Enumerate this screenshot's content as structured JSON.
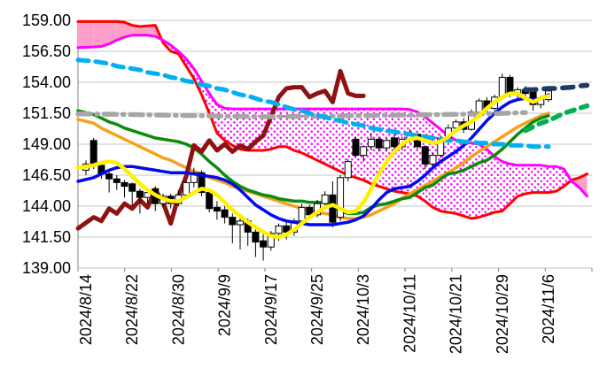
{
  "chart_data": {
    "type": "candlestick",
    "title": "",
    "grid": true,
    "legend": false,
    "y_axis": {
      "min": 139.0,
      "max": 159.0,
      "step": 2.5,
      "tick_labels": [
        "159.00",
        "156.50",
        "154.00",
        "151.50",
        "149.00",
        "146.50",
        "144.00",
        "141.50",
        "139.00"
      ]
    },
    "x_axis": {
      "tick_labels": [
        "2024/8/14",
        "2024/8/22",
        "2024/8/30",
        "2024/9/9",
        "2024/9/17",
        "2024/9/25",
        "2024/10/3",
        "2024/10/11",
        "2024/10/21",
        "2024/10/29",
        "2024/11/6"
      ],
      "tick_indices": [
        0,
        6,
        12,
        18,
        24,
        30,
        36,
        42,
        48,
        54,
        60
      ],
      "total_slots": 66
    },
    "colors": {
      "up": "#FFFFFF",
      "down": "#000000",
      "outline": "#000000",
      "grid": "#C6C6C6",
      "axis": "#808080",
      "cloud_solid": "#FF9EC8",
      "cloud_dot": "#FF00FF",
      "text": "#000000"
    },
    "candles": [
      [
        146.9,
        147.7,
        146.5,
        147.4
      ],
      [
        149.3,
        149.5,
        147.0,
        147.3
      ],
      [
        147.3,
        147.5,
        146.2,
        146.6
      ],
      [
        146.6,
        146.8,
        145.1,
        146.2
      ],
      [
        146.2,
        146.5,
        145.3,
        145.9
      ],
      [
        145.9,
        146.1,
        144.7,
        145.6
      ],
      [
        145.8,
        145.9,
        144.0,
        145.2
      ],
      [
        145.2,
        145.4,
        143.4,
        144.7
      ],
      [
        144.7,
        145.3,
        144.2,
        145.1
      ],
      [
        145.4,
        145.6,
        143.6,
        144.2
      ],
      [
        144.2,
        145.0,
        143.9,
        144.8
      ],
      [
        144.8,
        145.0,
        143.8,
        144.2
      ],
      [
        144.2,
        145.3,
        144.0,
        144.9
      ],
      [
        144.9,
        146.1,
        144.6,
        145.9
      ],
      [
        145.9,
        147.1,
        145.5,
        146.7
      ],
      [
        146.7,
        146.9,
        144.8,
        145.1
      ],
      [
        145.1,
        145.2,
        143.5,
        143.8
      ],
      [
        143.9,
        144.4,
        142.9,
        143.6
      ],
      [
        143.7,
        144.0,
        142.6,
        143.1
      ],
      [
        143.1,
        143.4,
        141.0,
        142.5
      ],
      [
        142.5,
        143.1,
        140.5,
        142.8
      ],
      [
        142.8,
        143.0,
        140.8,
        141.9
      ],
      [
        141.9,
        142.2,
        139.9,
        141.1
      ],
      [
        141.2,
        141.8,
        139.6,
        140.7
      ],
      [
        140.7,
        142.0,
        140.4,
        141.8
      ],
      [
        141.8,
        142.6,
        141.2,
        142.4
      ],
      [
        142.4,
        142.7,
        141.3,
        141.9
      ],
      [
        141.9,
        143.0,
        141.6,
        142.8
      ],
      [
        142.8,
        144.2,
        142.5,
        143.9
      ],
      [
        143.9,
        144.1,
        143.0,
        143.3
      ],
      [
        143.3,
        144.5,
        143.1,
        144.2
      ],
      [
        144.2,
        145.2,
        143.9,
        144.9
      ],
      [
        144.9,
        146.0,
        142.3,
        142.7
      ],
      [
        143.1,
        146.5,
        142.8,
        146.3
      ],
      [
        146.3,
        147.8,
        146.0,
        147.6
      ],
      [
        149.4,
        149.6,
        147.9,
        148.1
      ],
      [
        148.1,
        148.9,
        147.6,
        148.8
      ],
      [
        148.8,
        149.9,
        148.5,
        149.4
      ],
      [
        149.4,
        149.6,
        148.4,
        148.7
      ],
      [
        148.7,
        149.5,
        148.4,
        149.3
      ],
      [
        149.5,
        150.0,
        148.6,
        148.8
      ],
      [
        148.8,
        149.6,
        148.5,
        149.4
      ],
      [
        149.4,
        150.2,
        149.1,
        149.8
      ],
      [
        149.8,
        149.9,
        148.6,
        148.8
      ],
      [
        148.8,
        148.9,
        147.0,
        147.4
      ],
      [
        147.4,
        148.3,
        147.2,
        148.1
      ],
      [
        148.1,
        149.7,
        147.9,
        149.5
      ],
      [
        149.5,
        150.6,
        149.3,
        150.3
      ],
      [
        150.3,
        151.0,
        150.0,
        150.8
      ],
      [
        150.8,
        151.1,
        149.9,
        150.2
      ],
      [
        150.2,
        151.8,
        150.1,
        151.6
      ],
      [
        151.6,
        152.7,
        151.4,
        152.5
      ],
      [
        152.5,
        152.8,
        151.6,
        151.9
      ],
      [
        151.9,
        153.0,
        151.7,
        152.8
      ],
      [
        152.8,
        154.7,
        152.6,
        154.4
      ],
      [
        154.4,
        154.6,
        152.8,
        153.0
      ],
      [
        153.0,
        153.6,
        152.7,
        153.4
      ],
      [
        153.4,
        153.7,
        152.9,
        153.1
      ],
      [
        153.3,
        153.5,
        151.7,
        152.2
      ],
      [
        152.2,
        152.9,
        151.9,
        152.6
      ],
      [
        152.6,
        153.5,
        152.4,
        153.3
      ]
    ],
    "series": {
      "yellow_fast_ma": {
        "color": "#FFF000",
        "width": 4.5,
        "start": 0,
        "values": [
          147.1,
          147.3,
          147.5,
          147.6,
          147.5,
          147.0,
          146.4,
          145.8,
          145.3,
          144.9,
          144.6,
          144.4,
          144.4,
          144.7,
          145.1,
          145.4,
          145.3,
          144.9,
          144.3,
          143.7,
          143.2,
          142.7,
          142.3,
          141.9,
          141.6,
          141.5,
          141.7,
          142.1,
          142.6,
          143.1,
          143.5,
          143.9,
          144.1,
          143.8,
          143.5,
          143.6,
          144.3,
          145.4,
          146.6,
          147.6,
          148.4,
          149.0,
          149.4,
          149.5,
          149.3,
          149.1,
          149.2,
          149.6,
          150.1,
          150.5,
          150.8,
          151.3,
          151.9,
          152.4,
          152.8,
          153.1,
          153.1,
          152.7,
          152.4,
          152.7,
          152.9
        ]
      },
      "blue_ma": {
        "color": "#0008F0",
        "width": 3.5,
        "start": 0,
        "values": [
          146.0,
          146.3,
          146.6,
          146.9,
          147.1,
          147.2,
          147.2,
          147.1,
          147.0,
          146.9,
          146.8,
          146.7,
          146.7,
          146.7,
          146.6,
          146.5,
          146.4,
          146.3,
          146.1,
          145.8,
          145.3,
          144.7,
          144.1,
          143.7,
          143.3,
          143.0,
          142.8,
          142.7,
          142.6,
          142.5,
          142.5,
          142.5,
          142.5,
          142.6,
          142.7,
          142.9,
          143.2,
          143.8,
          144.5,
          145.1,
          145.4,
          145.5,
          145.6,
          146.0,
          146.5,
          147.1,
          147.6,
          148.0,
          148.4,
          148.9,
          149.5,
          150.2,
          150.9,
          151.5,
          152.0,
          152.4,
          152.6,
          152.7,
          152.6,
          152.7,
          153.0
        ]
      },
      "green_slow_ma": {
        "color": "#0E8A0E",
        "width": 3.5,
        "start": 0,
        "values": [
          151.7,
          151.4,
          151.1,
          150.8,
          150.6,
          150.3,
          150.1,
          149.9,
          149.7,
          149.5,
          149.4,
          149.3,
          149.2,
          149.0,
          148.7,
          148.2,
          147.6,
          147.1,
          146.5,
          146.0,
          145.6,
          145.3,
          145.1,
          144.9,
          144.8,
          144.6,
          144.5,
          144.4,
          144.4,
          144.3,
          144.3,
          144.3,
          144.0,
          143.6,
          143.4,
          143.4,
          143.5,
          143.9,
          144.1,
          144.2,
          144.4,
          144.6,
          144.7,
          145.1,
          145.5,
          145.7,
          146.2,
          146.6,
          146.7,
          146.9,
          147.2,
          147.5,
          147.7,
          148.1,
          148.6,
          149.2,
          149.8,
          150.3,
          150.8,
          151.1,
          151.3
        ]
      },
      "orange_ma": {
        "color": "#F7A11A",
        "width": 3.5,
        "start": 0,
        "values": [
          151.0,
          150.7,
          150.3,
          150.0,
          149.7,
          149.4,
          149.1,
          148.8,
          148.5,
          148.2,
          147.9,
          147.7,
          147.4,
          147.1,
          146.8,
          146.6,
          146.3,
          146.1,
          145.9,
          145.6,
          145.4,
          145.2,
          145.0,
          144.8,
          144.6,
          144.4,
          144.2,
          144.0,
          143.8,
          143.7,
          143.5,
          143.4,
          143.3,
          143.1,
          143.0,
          143.0,
          143.1,
          143.3,
          143.6,
          143.9,
          144.2,
          144.6,
          145.0,
          145.3,
          145.7,
          146.0,
          146.4,
          146.7,
          147.1,
          147.5,
          148.0,
          148.4,
          148.8,
          149.2,
          149.6,
          150.0,
          150.4,
          150.7,
          151.0,
          151.3,
          151.5
        ]
      },
      "cyan_longterm_ma": {
        "color": "#00B0F0",
        "width": 5,
        "dash": [
          12,
          8
        ],
        "start": 0,
        "values": [
          155.8,
          155.7,
          155.6,
          155.5,
          155.3,
          155.2,
          155.1,
          155.0,
          154.8,
          154.7,
          154.6,
          154.4,
          154.3,
          154.1,
          154.0,
          153.8,
          153.7,
          153.5,
          153.4,
          153.2,
          153.0,
          152.9,
          152.7,
          152.5,
          152.4,
          152.2,
          152.0,
          151.8,
          151.7,
          151.5,
          151.3,
          151.2,
          151.0,
          150.9,
          150.7,
          150.6,
          150.5,
          150.3,
          150.2,
          150.1,
          150.0,
          149.9,
          149.8,
          149.7,
          149.6,
          149.5,
          149.4,
          149.3,
          149.3,
          149.2,
          149.2,
          149.1,
          149.1,
          149.0,
          149.0,
          148.9,
          148.9,
          148.9,
          148.8,
          148.8,
          148.8
        ]
      },
      "gray_flat_dashdot": {
        "color": "#A6A6A6",
        "width": 5.5,
        "dash": [
          14,
          7,
          1.5,
          7
        ],
        "start": 0,
        "values": [
          151.45,
          151.44,
          151.43,
          151.42,
          151.41,
          151.4,
          151.39,
          151.38,
          151.37,
          151.36,
          151.35,
          151.34,
          151.33,
          151.32,
          151.31,
          151.3,
          151.29,
          151.28,
          151.27,
          151.26,
          151.25,
          151.24,
          151.23,
          151.22,
          151.21,
          151.22,
          151.23,
          151.24,
          151.25,
          151.25,
          151.26,
          151.27,
          151.28,
          151.29,
          151.3,
          151.3,
          151.31,
          151.32,
          151.33,
          151.34,
          151.35,
          151.36,
          151.36,
          151.37,
          151.38,
          151.39,
          151.4,
          151.4,
          151.41,
          151.42,
          151.43,
          151.44,
          151.45,
          151.47,
          151.49,
          151.51,
          151.53,
          151.55
        ]
      },
      "maroon_lagging": {
        "color": "#8E1212",
        "width": 5,
        "start": 0,
        "values": [
          142.2,
          143.1,
          142.8,
          143.8,
          143.4,
          144.2,
          143.8,
          144.5,
          143.9,
          145.3,
          144.3,
          142.6,
          144.8,
          146.4,
          148.9,
          148.4,
          149.3,
          148.5,
          149.0,
          148.4,
          148.9,
          148.6,
          149.2,
          149.7,
          151.2,
          152.8,
          153.5,
          153.6,
          153.6,
          152.8,
          153.1,
          153.3,
          152.4,
          154.9,
          153.1,
          152.9,
          152.9
        ]
      },
      "magenta_span_a": {
        "color": "#FF00FF",
        "width": 3,
        "start": 0,
        "values": [
          156.8,
          156.85,
          156.9,
          157.1,
          157.4,
          157.65,
          157.8,
          157.8,
          157.8,
          157.7,
          157.4,
          157.0,
          156.5,
          155.9,
          155.1,
          154.1,
          153.1,
          152.2,
          151.9,
          151.85,
          151.85,
          151.85,
          151.85,
          151.85,
          151.85,
          151.85,
          151.85,
          151.85,
          151.85,
          151.85,
          151.85,
          151.85,
          151.85,
          151.85,
          151.85,
          151.85,
          151.85,
          151.85,
          151.85,
          151.85,
          151.85,
          151.85,
          151.8,
          151.6,
          151.2,
          150.7,
          150.2,
          149.7,
          149.3,
          149.1,
          149.1,
          149.0,
          148.6,
          148.0,
          147.6,
          147.4,
          147.3,
          147.3,
          147.3,
          147.3,
          147.2,
          147.2,
          147.0,
          146.0,
          145.5,
          144.8
        ]
      },
      "red_span_b": {
        "color": "#FF0000",
        "width": 3,
        "start": 0,
        "values": [
          158.9,
          158.9,
          158.9,
          158.9,
          158.9,
          158.85,
          158.6,
          158.5,
          158.55,
          158.6,
          157.2,
          156.5,
          156.3,
          155.3,
          154.3,
          153.0,
          151.5,
          149.9,
          149.3,
          148.9,
          148.6,
          148.5,
          148.5,
          148.5,
          148.6,
          148.8,
          148.8,
          148.5,
          148.3,
          148.0,
          147.7,
          147.4,
          147.1,
          146.8,
          146.5,
          146.3,
          146.1,
          145.8,
          145.6,
          145.4,
          145.2,
          145.1,
          145.0,
          144.8,
          144.4,
          143.9,
          143.6,
          143.5,
          143.4,
          143.2,
          143.0,
          143.1,
          143.3,
          143.5,
          143.6,
          144.2,
          144.8,
          145.0,
          145.1,
          145.1,
          145.1,
          145.2,
          145.6,
          146.1,
          146.3,
          146.6
        ]
      },
      "navy_projection": {
        "color": "#1F3864",
        "width": 5.5,
        "dash": [
          12,
          9
        ],
        "start": 57,
        "values": [
          153.4,
          153.4,
          153.45,
          153.5,
          153.5,
          153.55,
          153.6,
          153.7,
          153.75
        ]
      },
      "green_projection": {
        "color": "#00B050",
        "width": 5.5,
        "dash": [
          9,
          8
        ],
        "start": 57,
        "values": [
          150.1,
          150.4,
          150.7,
          150.9,
          151.2,
          151.5,
          151.7,
          151.9,
          152.1
        ]
      }
    },
    "cloud": {
      "upper": "magenta_span_a",
      "lower": "red_span_b",
      "solid_when": "red_above_magenta",
      "dotted_when": "magenta_above_red"
    }
  }
}
